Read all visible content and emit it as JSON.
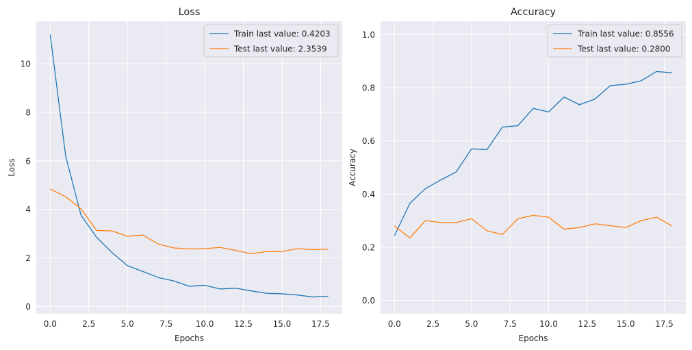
{
  "figure": {
    "background": "#ffffff",
    "axes_face": "#eaeaf2",
    "grid_color": "#ffffff"
  },
  "chart_data": [
    {
      "type": "line",
      "title": "Loss",
      "xlabel": "Epochs",
      "ylabel": "Loss",
      "xlim": [
        -0.9,
        18.9
      ],
      "ylim": [
        -0.3,
        11.75
      ],
      "xticks": [
        0,
        2.5,
        5,
        7.5,
        10,
        12.5,
        15,
        17.5
      ],
      "xtick_labels": [
        "0.0",
        "2.5",
        "5.0",
        "7.5",
        "10.0",
        "12.5",
        "15.0",
        "17.5"
      ],
      "yticks": [
        0,
        2,
        4,
        6,
        8,
        10
      ],
      "ytick_labels": [
        "0",
        "2",
        "4",
        "6",
        "8",
        "10"
      ],
      "grid": true,
      "legend_position": "top-right",
      "x": [
        0,
        1,
        2,
        3,
        4,
        5,
        6,
        7,
        8,
        9,
        10,
        11,
        12,
        13,
        14,
        15,
        16,
        17,
        18
      ],
      "series": [
        {
          "name": "Train last value: 0.4203",
          "color": "#1f77b4",
          "values": [
            11.2,
            6.2,
            3.75,
            2.85,
            2.22,
            1.68,
            1.44,
            1.19,
            1.05,
            0.83,
            0.87,
            0.72,
            0.75,
            0.64,
            0.54,
            0.52,
            0.47,
            0.39,
            0.42
          ]
        },
        {
          "name": "Test last value: 2.3539",
          "color": "#ff7f0e",
          "values": [
            4.84,
            4.52,
            4.02,
            3.13,
            3.11,
            2.89,
            2.94,
            2.57,
            2.41,
            2.37,
            2.38,
            2.43,
            2.31,
            2.17,
            2.26,
            2.26,
            2.38,
            2.34,
            2.36
          ]
        }
      ]
    },
    {
      "type": "line",
      "title": "Accuracy",
      "xlabel": "Epochs",
      "ylabel": "Accuracy",
      "xlim": [
        -0.9,
        18.9
      ],
      "ylim": [
        -0.05,
        1.05
      ],
      "xticks": [
        0,
        2.5,
        5,
        7.5,
        10,
        12.5,
        15,
        17.5
      ],
      "xtick_labels": [
        "0.0",
        "2.5",
        "5.0",
        "7.5",
        "10.0",
        "12.5",
        "15.0",
        "17.5"
      ],
      "yticks": [
        0,
        0.2,
        0.4,
        0.6,
        0.8,
        1.0
      ],
      "ytick_labels": [
        "0.0",
        "0.2",
        "0.4",
        "0.6",
        "0.8",
        "1.0"
      ],
      "grid": true,
      "legend_position": "top-right",
      "x": [
        0,
        1,
        2,
        3,
        4,
        5,
        6,
        7,
        8,
        9,
        10,
        11,
        12,
        13,
        14,
        15,
        16,
        17,
        18
      ],
      "series": [
        {
          "name": "Train last value: 0.8556",
          "color": "#1f77b4",
          "values": [
            0.243,
            0.365,
            0.42,
            0.453,
            0.483,
            0.57,
            0.567,
            0.652,
            0.657,
            0.722,
            0.709,
            0.765,
            0.736,
            0.757,
            0.808,
            0.813,
            0.826,
            0.861,
            0.856
          ]
        },
        {
          "name": "Test last value: 0.2800",
          "color": "#ff7f0e",
          "values": [
            0.28,
            0.235,
            0.3,
            0.293,
            0.293,
            0.307,
            0.262,
            0.248,
            0.307,
            0.32,
            0.313,
            0.268,
            0.274,
            0.288,
            0.281,
            0.274,
            0.3,
            0.313,
            0.28
          ]
        }
      ]
    }
  ]
}
